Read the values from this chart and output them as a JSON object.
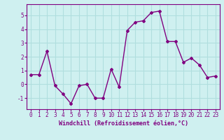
{
  "x": [
    0,
    1,
    2,
    3,
    4,
    5,
    6,
    7,
    8,
    9,
    10,
    11,
    12,
    13,
    14,
    15,
    16,
    17,
    18,
    19,
    20,
    21,
    22,
    23
  ],
  "y": [
    0.7,
    0.7,
    2.4,
    -0.1,
    -0.7,
    -1.4,
    -0.1,
    0.0,
    -1.0,
    -1.0,
    1.1,
    -0.2,
    3.9,
    4.5,
    4.6,
    5.2,
    5.3,
    3.1,
    3.1,
    1.6,
    1.9,
    1.4,
    0.5,
    0.6
  ],
  "line_color": "#800080",
  "marker": "D",
  "marker_size": 2.0,
  "bg_color": "#cff0f0",
  "grid_color": "#b0dede",
  "xlabel": "Windchill (Refroidissement éolien,°C)",
  "xlim": [
    -0.5,
    23.5
  ],
  "ylim": [
    -1.8,
    5.8
  ],
  "yticks": [
    -1,
    0,
    1,
    2,
    3,
    4,
    5
  ],
  "xticks": [
    0,
    1,
    2,
    3,
    4,
    5,
    6,
    7,
    8,
    9,
    10,
    11,
    12,
    13,
    14,
    15,
    16,
    17,
    18,
    19,
    20,
    21,
    22,
    23
  ],
  "label_color": "#800080",
  "tick_color": "#800080",
  "spine_color": "#800080",
  "line_width": 1.0,
  "tick_fontsize": 5.5,
  "xlabel_fontsize": 6.0
}
